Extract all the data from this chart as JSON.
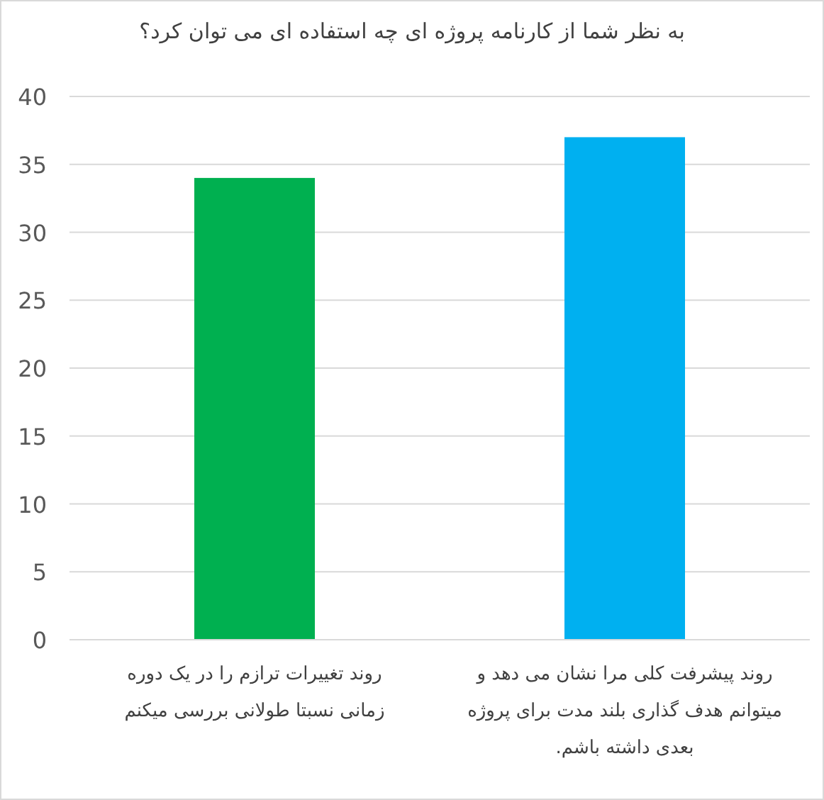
{
  "chart_data": {
    "type": "bar",
    "title": "به نظر شما از کارنامه پروژه ای چه استفاده ای می توان کرد؟",
    "categories": [
      "روند تغییرات ترازم را در یک دوره زمانی نسبتا طولانی بررسی میکنم",
      "روند پیشرفت کلی مرا نشان می دهد و میتوانم هدف گذاری بلند مدت برای پروژه بعدی داشته باشم."
    ],
    "values": [
      34,
      37
    ],
    "colors": [
      "#00b050",
      "#00b0f0"
    ],
    "ylim": [
      0,
      40
    ],
    "yticks": [
      0,
      5,
      10,
      15,
      20,
      25,
      30,
      35,
      40
    ],
    "grid": "y"
  }
}
